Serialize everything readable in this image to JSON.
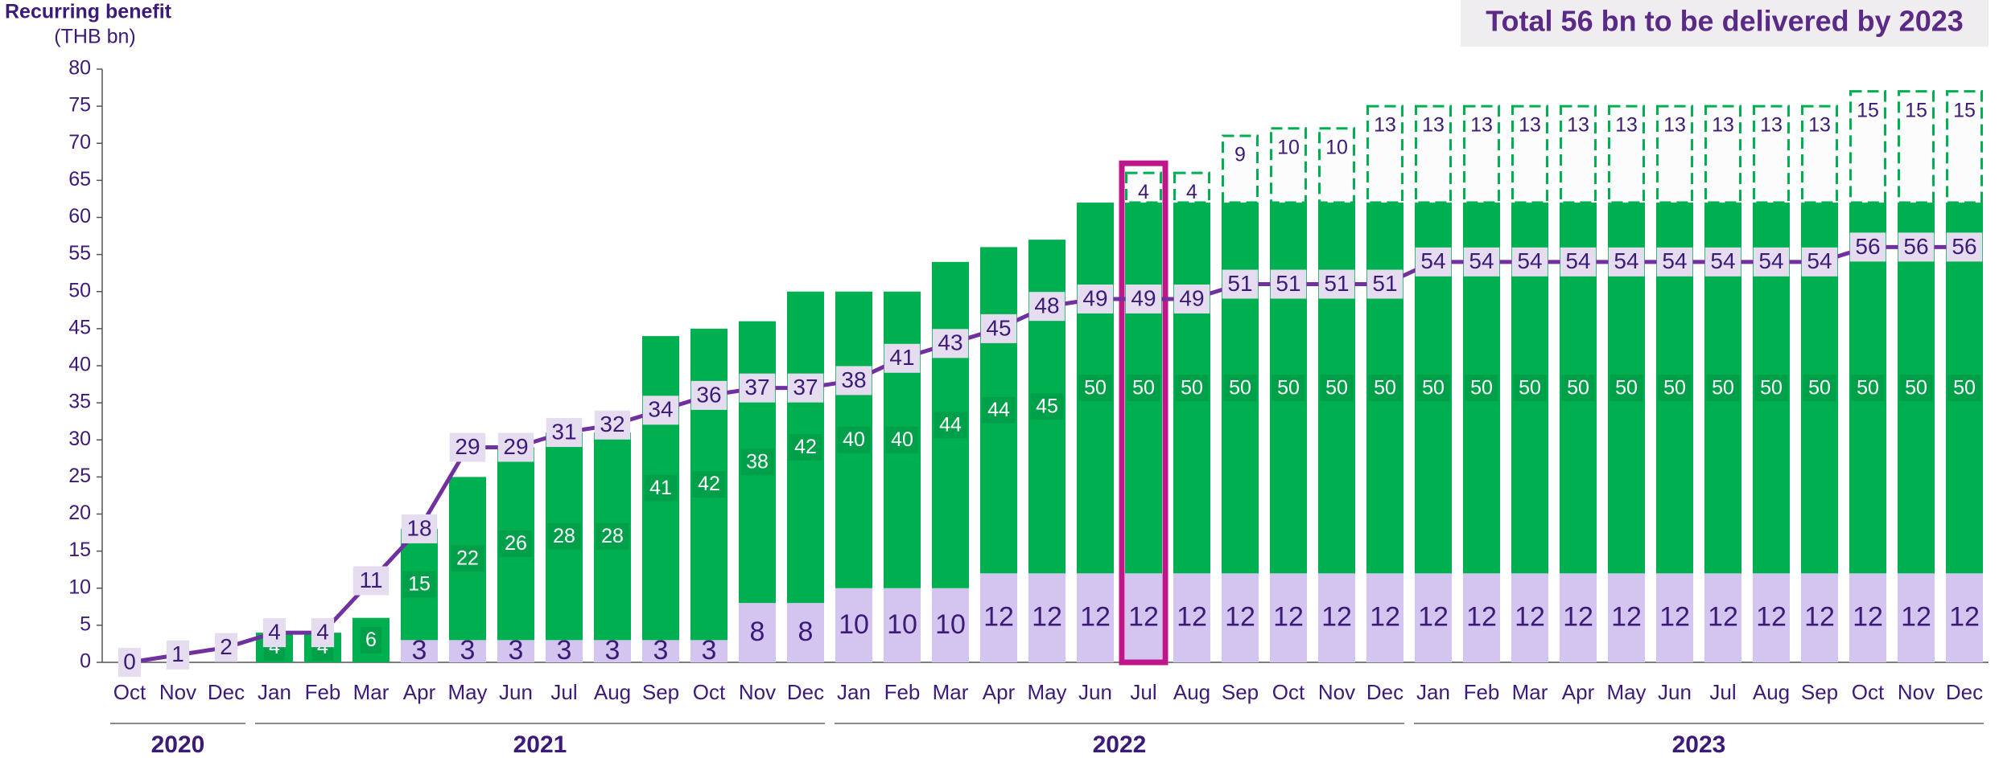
{
  "chart_data": {
    "type": "stacked-bar-line",
    "annotation": "Total 56 bn to be delivered by 2023",
    "y_label": "Recurring benefit",
    "y_unit": "(THB bn)",
    "categories": [
      "Oct",
      "Nov",
      "Dec",
      "Jan",
      "Feb",
      "Mar",
      "Apr",
      "May",
      "Jun",
      "Jul",
      "Aug",
      "Sep",
      "Oct",
      "Nov",
      "Dec",
      "Jan",
      "Feb",
      "Mar",
      "Apr",
      "May",
      "Jun",
      "Jul",
      "Aug",
      "Sep",
      "Oct",
      "Nov",
      "Dec",
      "Jan",
      "Feb",
      "Mar",
      "Apr",
      "May",
      "Jun",
      "Jul",
      "Aug",
      "Sep",
      "Oct",
      "Nov",
      "Dec"
    ],
    "category_years": [
      "2020",
      "2020",
      "2020",
      "2021",
      "2021",
      "2021",
      "2021",
      "2021",
      "2021",
      "2021",
      "2021",
      "2021",
      "2021",
      "2021",
      "2021",
      "2022",
      "2022",
      "2022",
      "2022",
      "2022",
      "2022",
      "2022",
      "2022",
      "2022",
      "2022",
      "2022",
      "2022",
      "2023",
      "2023",
      "2023",
      "2023",
      "2023",
      "2023",
      "2023",
      "2023",
      "2023",
      "2023",
      "2023",
      "2023"
    ],
    "highlight": 21,
    "ylim": [
      0,
      80
    ],
    "yticks": [
      0,
      5,
      10,
      15,
      20,
      25,
      30,
      35,
      40,
      45,
      50,
      55,
      60,
      65,
      70,
      75,
      80
    ],
    "series": [
      {
        "kind": "bar",
        "color": "#d4c5f0",
        "values": [
          null,
          null,
          null,
          null,
          null,
          null,
          3,
          3,
          3,
          3,
          3,
          3,
          3,
          8,
          8,
          10,
          10,
          10,
          12,
          12,
          12,
          12,
          12,
          12,
          12,
          12,
          12,
          12,
          12,
          12,
          12,
          12,
          12,
          12,
          12,
          12,
          12,
          12,
          12
        ]
      },
      {
        "kind": "bar",
        "color": "#00b050",
        "values": [
          null,
          null,
          null,
          4,
          4,
          6,
          15,
          22,
          26,
          28,
          28,
          41,
          42,
          38,
          42,
          40,
          40,
          44,
          44,
          45,
          50,
          50,
          50,
          50,
          50,
          50,
          50,
          50,
          50,
          50,
          50,
          50,
          50,
          50,
          50,
          50,
          50,
          50,
          50
        ]
      },
      {
        "kind": "dashed",
        "color": "#00b050",
        "values": [
          null,
          null,
          null,
          null,
          null,
          null,
          null,
          null,
          null,
          null,
          null,
          null,
          null,
          null,
          null,
          null,
          null,
          null,
          null,
          null,
          null,
          4,
          4,
          9,
          10,
          10,
          13,
          13,
          13,
          13,
          13,
          13,
          13,
          13,
          13,
          13,
          15,
          15,
          15
        ]
      },
      {
        "kind": "line",
        "color": "#7030a0",
        "values": [
          0,
          1,
          2,
          4,
          4,
          11,
          18,
          29,
          29,
          31,
          32,
          34,
          36,
          37,
          37,
          38,
          41,
          43,
          45,
          48,
          49,
          49,
          49,
          51,
          51,
          51,
          51,
          54,
          54,
          54,
          54,
          54,
          54,
          54,
          54,
          54,
          56,
          56,
          56
        ]
      }
    ]
  }
}
